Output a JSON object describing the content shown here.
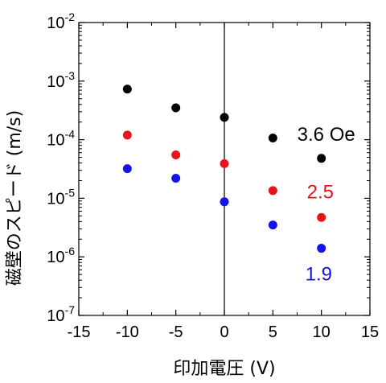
{
  "chart_data": {
    "type": "scatter",
    "xlabel": "印加電圧 (V)",
    "ylabel": "磁壁のスピード (m/s)",
    "xlim": [
      -15,
      15
    ],
    "ylim": [
      1e-07,
      0.01
    ],
    "y_scale": "log",
    "grid": false,
    "x_ticks": [
      -15,
      -10,
      -5,
      0,
      5,
      10,
      15
    ],
    "x_tick_labels": [
      "-15",
      "-10",
      "-5",
      "0",
      "5",
      "10",
      "15"
    ],
    "y_ticks": [
      1e-07,
      1e-06,
      1e-05,
      0.0001,
      0.001,
      0.01
    ],
    "y_tick_mantissa": "10",
    "y_tick_exponents": [
      "-7",
      "-6",
      "-5",
      "-4",
      "-3",
      "-2"
    ],
    "vertical_line_at_x": 0,
    "series": [
      {
        "label": "3.6 Oe",
        "color": "#000000",
        "x": [
          -10,
          -5,
          0,
          5,
          10
        ],
        "y": [
          0.00073,
          0.00035,
          0.00024,
          0.000107,
          4.8e-05
        ]
      },
      {
        "label": "2.5",
        "color": "#e8141c",
        "x": [
          -10,
          -5,
          0,
          5,
          10
        ],
        "y": [
          0.00012,
          5.5e-05,
          3.9e-05,
          1.35e-05,
          4.7e-06
        ]
      },
      {
        "label": "1.9",
        "color": "#1414e6",
        "x": [
          -10,
          -5,
          0,
          5,
          10
        ],
        "y": [
          3.2e-05,
          2.2e-05,
          8.7e-06,
          3.5e-06,
          1.4e-06
        ]
      }
    ]
  }
}
